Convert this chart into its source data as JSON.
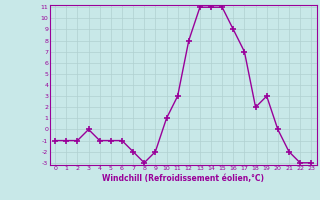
{
  "x": [
    0,
    1,
    2,
    3,
    4,
    5,
    6,
    7,
    8,
    9,
    10,
    11,
    12,
    13,
    14,
    15,
    16,
    17,
    18,
    19,
    20,
    21,
    22,
    23
  ],
  "y": [
    -1,
    -1,
    -1,
    0,
    -1,
    -1,
    -1,
    -2,
    -3,
    -2,
    1,
    3,
    8,
    11,
    11,
    11,
    9,
    7,
    2,
    3,
    0,
    -2,
    -3,
    -3
  ],
  "line_color": "#990099",
  "marker_color": "#990099",
  "bg_color": "#c8e8e8",
  "grid_color": "#b0d0d0",
  "xlabel": "Windchill (Refroidissement éolien,°C)",
  "xlabel_color": "#990099",
  "tick_color": "#990099",
  "ylim": [
    -3,
    11
  ],
  "xlim": [
    -0.5,
    23.5
  ],
  "yticks": [
    -3,
    -2,
    -1,
    0,
    1,
    2,
    3,
    4,
    5,
    6,
    7,
    8,
    9,
    10,
    11
  ],
  "xticks": [
    0,
    1,
    2,
    3,
    4,
    5,
    6,
    7,
    8,
    9,
    10,
    11,
    12,
    13,
    14,
    15,
    16,
    17,
    18,
    19,
    20,
    21,
    22,
    23
  ]
}
